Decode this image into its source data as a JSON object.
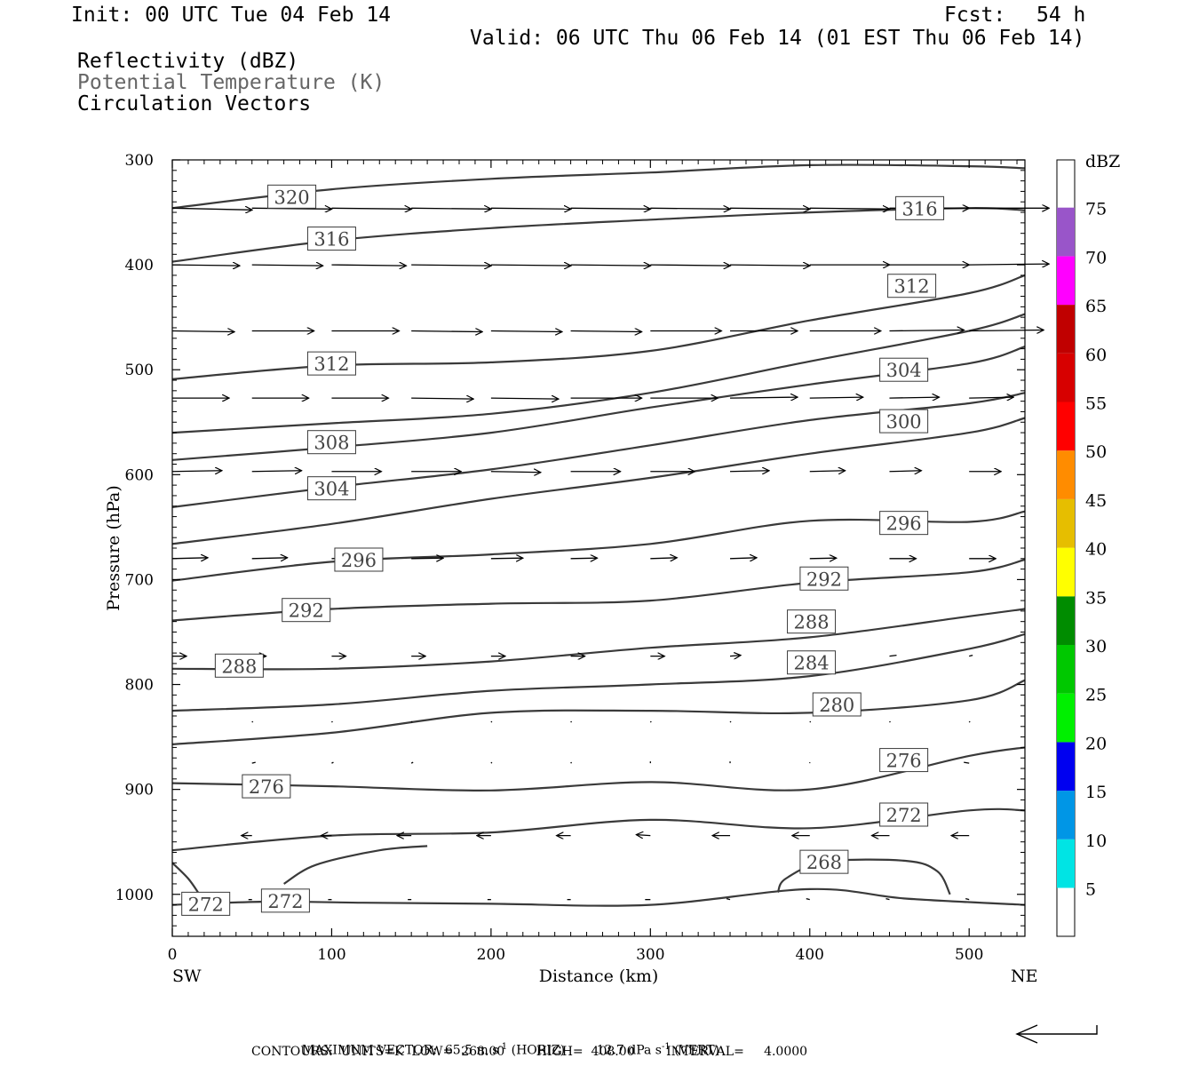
{
  "header": {
    "init": "Init: 00 UTC Tue 04 Feb 14",
    "fcst_label": "Fcst:",
    "fcst_value": "54 h",
    "valid": "Valid: 06 UTC Thu 06 Feb 14 (01 EST Thu 06 Feb 14)",
    "field1": "Reflectivity (dBZ)",
    "field2": "Potential Temperature (K)",
    "field3": "Circulation Vectors"
  },
  "colors": {
    "contour": "#3a3a3a",
    "vector": "#000000",
    "field2_text": "#666666"
  },
  "chart_data": {
    "type": "line",
    "xlabel": "Distance (km)",
    "ylabel": "Pressure (hPa)",
    "xlim": [
      0,
      535
    ],
    "ylim": [
      1040,
      300
    ],
    "y_scale": "linear, inverted",
    "x_ticks": [
      0,
      100,
      200,
      300,
      400,
      500
    ],
    "x_tick_labels": [
      "0",
      "100",
      "200",
      "300",
      "400",
      "500"
    ],
    "y_ticks": [
      300,
      400,
      500,
      600,
      700,
      800,
      900,
      1000
    ],
    "y_tick_labels": [
      "300",
      "400",
      "500",
      "600",
      "700",
      "800",
      "900",
      "1000"
    ],
    "end_labels": {
      "left": "SW",
      "right": "NE"
    },
    "contours": [
      {
        "theta": "320",
        "x": [
          0,
          100,
          200,
          300,
          400,
          500,
          535
        ],
        "p": [
          346,
          328,
          318,
          312,
          305,
          306,
          308
        ]
      },
      {
        "theta": "316",
        "x": [
          0,
          100,
          200,
          300,
          400,
          500,
          535
        ],
        "p": [
          397,
          377,
          365,
          357,
          350,
          346,
          348
        ]
      },
      {
        "theta": "312",
        "x": [
          0,
          100,
          200,
          300,
          400,
          500,
          535
        ],
        "p": [
          509,
          496,
          493,
          482,
          453,
          427,
          410
        ]
      },
      {
        "theta": "",
        "x": [
          0,
          100,
          200,
          300,
          400,
          500,
          535
        ],
        "p": [
          560,
          551,
          542,
          522,
          492,
          463,
          447
        ]
      },
      {
        "theta": "308",
        "x": [
          0,
          100,
          200,
          300,
          400,
          500,
          535
        ],
        "p": [
          586,
          574,
          560,
          536,
          514,
          494,
          478
        ]
      },
      {
        "theta": "304",
        "x": [
          0,
          100,
          200,
          300,
          400,
          500,
          535
        ],
        "p": [
          631,
          612,
          595,
          572,
          548,
          532,
          522
        ]
      },
      {
        "theta": "300",
        "x": [
          0,
          100,
          200,
          300,
          400,
          500,
          535
        ],
        "p": [
          666,
          647,
          623,
          603,
          580,
          560,
          546
        ]
      },
      {
        "theta": "296",
        "x": [
          0,
          100,
          200,
          300,
          400,
          500,
          535
        ],
        "p": [
          701,
          683,
          676,
          666,
          644,
          645,
          635
        ]
      },
      {
        "theta": "292",
        "x": [
          0,
          100,
          200,
          300,
          400,
          500,
          535
        ],
        "p": [
          739,
          728,
          723,
          720,
          703,
          693,
          681
        ]
      },
      {
        "theta": "288",
        "x": [
          0,
          100,
          200,
          300,
          400,
          500,
          535
        ],
        "p": [
          785,
          785,
          778,
          765,
          755,
          735,
          728
        ]
      },
      {
        "theta": "284",
        "x": [
          0,
          100,
          200,
          300,
          400,
          500,
          535
        ],
        "p": [
          825,
          819,
          806,
          800,
          792,
          766,
          752
        ]
      },
      {
        "theta": "280",
        "x": [
          0,
          100,
          200,
          300,
          400,
          500,
          535
        ],
        "p": [
          857,
          846,
          827,
          825,
          827,
          815,
          796
        ]
      },
      {
        "theta": "276",
        "x": [
          0,
          100,
          200,
          300,
          400,
          500,
          535
        ],
        "p": [
          894,
          897,
          901,
          893,
          900,
          868,
          860
        ]
      },
      {
        "theta": "272",
        "x": [
          0,
          100,
          200,
          300,
          400,
          500,
          535
        ],
        "p": [
          958,
          944,
          941,
          929,
          937,
          920,
          920
        ]
      },
      {
        "theta": "272",
        "x": [
          0,
          60,
          120,
          200,
          300,
          400,
          460,
          535
        ],
        "p": [
          1010,
          1007,
          1008,
          1009,
          1010,
          995,
          1004,
          1010
        ]
      },
      {
        "theta": "272",
        "x": [
          0,
          10,
          17
        ],
        "p": [
          970,
          985,
          1000
        ]
      },
      {
        "theta": "272",
        "x": [
          70,
          90,
          130,
          160
        ],
        "p": [
          990,
          972,
          958,
          954
        ]
      },
      {
        "theta": "268",
        "x": [
          380,
          385,
          410,
          460,
          480,
          488
        ],
        "p": [
          998,
          985,
          969,
          968,
          978,
          1000
        ]
      }
    ],
    "contour_labels": [
      {
        "text": "320",
        "x": 75,
        "p": 335
      },
      {
        "text": "316",
        "x": 100,
        "p": 375
      },
      {
        "text": "316",
        "x": 469,
        "p": 346
      },
      {
        "text": "312",
        "x": 100,
        "p": 494
      },
      {
        "text": "312",
        "x": 464,
        "p": 420
      },
      {
        "text": "308",
        "x": 100,
        "p": 569
      },
      {
        "text": "304",
        "x": 100,
        "p": 613
      },
      {
        "text": "304",
        "x": 459,
        "p": 500
      },
      {
        "text": "300",
        "x": 459,
        "p": 549
      },
      {
        "text": "296",
        "x": 117,
        "p": 681
      },
      {
        "text": "296",
        "x": 459,
        "p": 646
      },
      {
        "text": "292",
        "x": 84,
        "p": 729
      },
      {
        "text": "292",
        "x": 409,
        "p": 699
      },
      {
        "text": "288",
        "x": 42,
        "p": 782
      },
      {
        "text": "288",
        "x": 401,
        "p": 740
      },
      {
        "text": "284",
        "x": 401,
        "p": 779
      },
      {
        "text": "280",
        "x": 417,
        "p": 819
      },
      {
        "text": "276",
        "x": 59,
        "p": 897
      },
      {
        "text": "276",
        "x": 459,
        "p": 872
      },
      {
        "text": "272",
        "x": 459,
        "p": 924
      },
      {
        "text": "272",
        "x": 21,
        "p": 1009
      },
      {
        "text": "272",
        "x": 71,
        "p": 1006
      },
      {
        "text": "268",
        "x": 409,
        "p": 969
      }
    ],
    "vector_rows": [
      {
        "p": 346,
        "x": [
          0,
          50,
          100,
          150,
          200,
          250,
          300,
          350,
          400,
          450,
          500
        ],
        "u": [
          45,
          45,
          45,
          45,
          45,
          45,
          45,
          45,
          45,
          45,
          45
        ],
        "v": [
          -1,
          -0.5,
          -0.5,
          -0.5,
          -0.5,
          -0.5,
          -0.5,
          -0.5,
          -0.5,
          0,
          0
        ]
      },
      {
        "p": 400,
        "x": [
          0,
          50,
          100,
          150,
          200,
          250,
          300,
          350,
          400,
          450,
          500
        ],
        "u": [
          38,
          40,
          42,
          45,
          45,
          45,
          45,
          45,
          45,
          45,
          45
        ],
        "v": [
          -0.5,
          -0.5,
          -0.5,
          -0.5,
          -0.5,
          -0.5,
          -0.5,
          -0.5,
          0,
          0,
          0.5
        ]
      },
      {
        "p": 463,
        "x": [
          0,
          50,
          100,
          150,
          200,
          250,
          300,
          350,
          400,
          450,
          500
        ],
        "u": [
          35,
          35,
          38,
          40,
          40,
          40,
          40,
          38,
          40,
          42,
          42
        ],
        "v": [
          -0.5,
          0,
          0,
          -0.5,
          -0.5,
          -0.5,
          0,
          0,
          0,
          0.5,
          0.5
        ]
      },
      {
        "p": 527,
        "x": [
          0,
          50,
          100,
          150,
          200,
          250,
          300,
          350,
          400,
          450,
          500
        ],
        "u": [
          32,
          32,
          32,
          35,
          38,
          40,
          38,
          38,
          30,
          28,
          25
        ],
        "v": [
          0,
          0,
          0,
          -0.5,
          -0.5,
          0,
          0,
          0.5,
          0.5,
          0.5,
          0.5
        ]
      },
      {
        "p": 597,
        "x": [
          0,
          50,
          100,
          150,
          200,
          250,
          300,
          350,
          400,
          450,
          500
        ],
        "u": [
          28,
          28,
          28,
          28,
          28,
          28,
          25,
          22,
          20,
          18,
          18
        ],
        "v": [
          0.5,
          0.5,
          0,
          0,
          -0.5,
          0,
          0,
          0.5,
          0.5,
          0.5,
          0
        ]
      },
      {
        "p": 680,
        "x": [
          0,
          50,
          100,
          150,
          200,
          250,
          300,
          350,
          400,
          450,
          500
        ],
        "u": [
          20,
          20,
          20,
          18,
          18,
          15,
          15,
          15,
          15,
          15,
          15
        ],
        "v": [
          0.5,
          0.5,
          0.5,
          0.3,
          0.3,
          0.3,
          0.5,
          0.5,
          0.3,
          0,
          0
        ]
      },
      {
        "p": 773,
        "x": [
          0,
          50,
          100,
          150,
          200,
          250,
          300,
          350,
          400,
          450,
          500
        ],
        "u": [
          8,
          8,
          8,
          8,
          8,
          8,
          8,
          6,
          6,
          4,
          2
        ],
        "v": [
          0,
          0,
          0,
          0,
          0,
          0,
          0,
          0.5,
          0.5,
          0.5,
          0.5
        ]
      },
      {
        "p": 836,
        "x": [
          50,
          100,
          150,
          200,
          250,
          300,
          350,
          400,
          450,
          500
        ],
        "u": [
          0.5,
          0.5,
          0.5,
          0.5,
          0.5,
          0.5,
          0.5,
          0.5,
          0.5,
          0.5
        ],
        "v": [
          0.5,
          0.5,
          0.5,
          0.5,
          0.5,
          0.5,
          0.5,
          0.5,
          0.5,
          0.5
        ]
      },
      {
        "p": 875,
        "x": [
          50,
          100,
          150,
          200,
          250,
          300,
          350,
          400,
          450,
          500
        ],
        "u": [
          2,
          1,
          1,
          0.5,
          0.5,
          0,
          0,
          0,
          -2,
          -3
        ],
        "v": [
          0.5,
          0.5,
          0.5,
          0.5,
          0.5,
          1,
          1,
          0.5,
          0.5,
          0.5
        ]
      },
      {
        "p": 944,
        "x": [
          50,
          100,
          150,
          200,
          250,
          300,
          350,
          400,
          450,
          500
        ],
        "u": [
          -6,
          -6,
          -8,
          -8,
          -8,
          -8,
          -10,
          -10,
          -10,
          -10
        ],
        "v": [
          0,
          0,
          0,
          0,
          0,
          0.5,
          0,
          0,
          0,
          0
        ]
      },
      {
        "p": 1005,
        "x": [
          50,
          100,
          150,
          200,
          250,
          300,
          350,
          400,
          450,
          500
        ],
        "u": [
          -2,
          -2,
          -2,
          -2,
          -2,
          -3,
          -2,
          -2,
          -2,
          -2
        ],
        "v": [
          0,
          0,
          0,
          0,
          0,
          0,
          0.5,
          0.5,
          0.5,
          0.5
        ]
      }
    ],
    "colorbar": {
      "title": "dBZ",
      "levels": [
        "5",
        "10",
        "15",
        "20",
        "25",
        "30",
        "35",
        "40",
        "45",
        "50",
        "55",
        "60",
        "65",
        "70",
        "75"
      ],
      "colors": [
        "#00e4e4",
        "#0096e6",
        "#0000f0",
        "#00f000",
        "#00c800",
        "#008c00",
        "#ffff00",
        "#e6be00",
        "#ff8c00",
        "#ff0000",
        "#d70000",
        "#c00000",
        "#ff00ff",
        "#9955c9",
        "#ffffff"
      ]
    }
  },
  "footer": {
    "line1_left": "MAXIMUM VECTOR:  65.5 m s",
    "line1_mid": " (HORIZ)        12.7 dPa s",
    "line1_right": " (VERT)",
    "sup": "-1",
    "line2": "CONTOURS:  UNITS=K  LOW=  268.00        HIGH=  408.00        INTERVAL=     4.0000"
  }
}
